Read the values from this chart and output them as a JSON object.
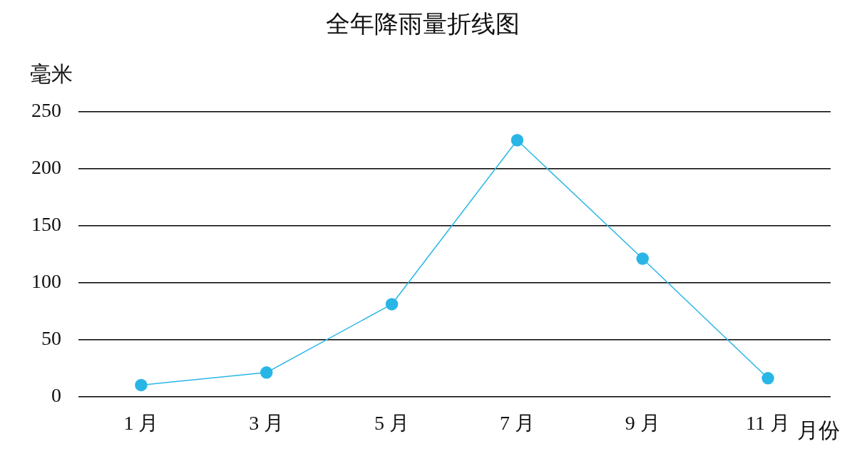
{
  "chart_data": {
    "type": "line",
    "title": "全年降雨量折线图",
    "ylabel": "毫米",
    "xlabel": "月份",
    "categories": [
      "1 月",
      "3 月",
      "5 月",
      "7 月",
      "9 月",
      "11 月"
    ],
    "series": [
      {
        "color": "#29b6e6",
        "values": [
          10,
          21,
          81,
          225,
          121,
          16
        ]
      }
    ],
    "ylim": [
      0,
      250
    ],
    "yticks": [
      0,
      50,
      100,
      150,
      200,
      250
    ],
    "grid": "y",
    "legend": false,
    "marker": "circle",
    "line_style": "solid"
  }
}
